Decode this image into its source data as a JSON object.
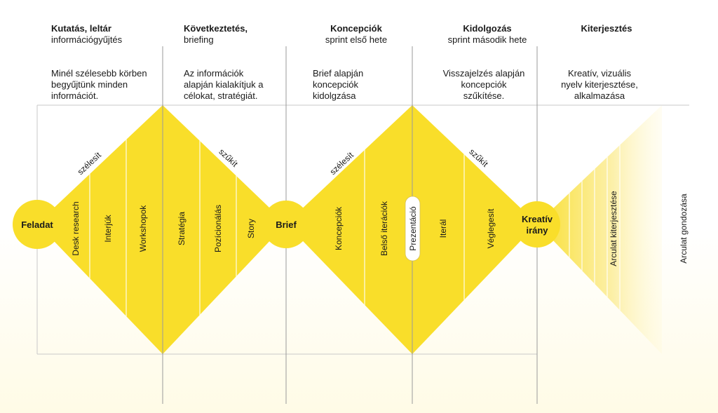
{
  "columns": [
    {
      "title": "Kutatás, leltár",
      "subtitle": "információgyűjtés",
      "desc": [
        "Minél szélesebb körben",
        "begyűjtünk minden",
        "információt."
      ]
    },
    {
      "title": "Következtetés,",
      "subtitle": "briefing",
      "desc": [
        "Az információk",
        "alapján kialakítjuk a",
        "célokat, stratégiát."
      ]
    },
    {
      "title": "Koncepciók",
      "subtitle": "sprint első hete",
      "desc": [
        "Brief alapján",
        "koncepciók",
        "kidolgzása"
      ]
    },
    {
      "title": "Kidolgozás",
      "subtitle": "sprint második hete",
      "desc": [
        "Visszajelzés alapján",
        "koncepciók",
        "szűkítése."
      ]
    },
    {
      "title": "Kiterjesztés",
      "subtitle": "",
      "desc": [
        "Kreatív, vizuális",
        "nyelv kiterjesztése,",
        "alkalmazása"
      ]
    }
  ],
  "nodes": {
    "feladat": "Feladat",
    "brief": "Brief",
    "kreativ_1": "Kreatív",
    "kreativ_2": "irány"
  },
  "diamond1": {
    "widen_label": "szélesít",
    "narrow_label": "szűkít",
    "steps": [
      "Desk research",
      "Interjúk",
      "Workshopok",
      "Stratégia",
      "Pozícionálás",
      "Story"
    ]
  },
  "diamond2": {
    "widen_label": "szélesít",
    "narrow_label": "szűkít",
    "steps_left": [
      "Koncepciók",
      "Belső iterációk"
    ],
    "presentation": "Prezentáció",
    "steps_right": [
      "Iterál",
      "Véglegesít"
    ]
  },
  "extension": {
    "steps": [
      "Arculat kiterjesztése",
      "Arculat gondozása"
    ]
  },
  "colors": {
    "yellow": "#f9de2a",
    "pale_yellow": "#fbe983",
    "line": "#9a9a9a",
    "frame": "#c8c8c8"
  }
}
